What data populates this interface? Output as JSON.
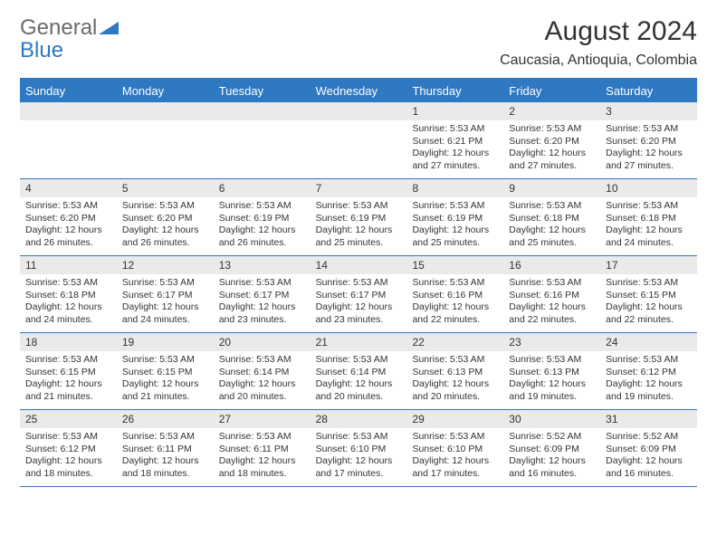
{
  "logo": {
    "text1": "General",
    "text2": "Blue"
  },
  "title": "August 2024",
  "location": "Caucasia, Antioquia, Colombia",
  "colors": {
    "header_blue": "#2f78c2",
    "daynum_bg": "#eaeaea",
    "text": "#333333",
    "logo_gray": "#6b6b6b"
  },
  "dow": [
    "Sunday",
    "Monday",
    "Tuesday",
    "Wednesday",
    "Thursday",
    "Friday",
    "Saturday"
  ],
  "fontsize": {
    "title": 30,
    "subtitle": 16,
    "dow": 13,
    "daynum": 12,
    "body": 10.5
  },
  "weeks": [
    [
      {
        "n": "",
        "sr": "",
        "ss": "",
        "dl": ""
      },
      {
        "n": "",
        "sr": "",
        "ss": "",
        "dl": ""
      },
      {
        "n": "",
        "sr": "",
        "ss": "",
        "dl": ""
      },
      {
        "n": "",
        "sr": "",
        "ss": "",
        "dl": ""
      },
      {
        "n": "1",
        "sr": "Sunrise: 5:53 AM",
        "ss": "Sunset: 6:21 PM",
        "dl": "Daylight: 12 hours and 27 minutes."
      },
      {
        "n": "2",
        "sr": "Sunrise: 5:53 AM",
        "ss": "Sunset: 6:20 PM",
        "dl": "Daylight: 12 hours and 27 minutes."
      },
      {
        "n": "3",
        "sr": "Sunrise: 5:53 AM",
        "ss": "Sunset: 6:20 PM",
        "dl": "Daylight: 12 hours and 27 minutes."
      }
    ],
    [
      {
        "n": "4",
        "sr": "Sunrise: 5:53 AM",
        "ss": "Sunset: 6:20 PM",
        "dl": "Daylight: 12 hours and 26 minutes."
      },
      {
        "n": "5",
        "sr": "Sunrise: 5:53 AM",
        "ss": "Sunset: 6:20 PM",
        "dl": "Daylight: 12 hours and 26 minutes."
      },
      {
        "n": "6",
        "sr": "Sunrise: 5:53 AM",
        "ss": "Sunset: 6:19 PM",
        "dl": "Daylight: 12 hours and 26 minutes."
      },
      {
        "n": "7",
        "sr": "Sunrise: 5:53 AM",
        "ss": "Sunset: 6:19 PM",
        "dl": "Daylight: 12 hours and 25 minutes."
      },
      {
        "n": "8",
        "sr": "Sunrise: 5:53 AM",
        "ss": "Sunset: 6:19 PM",
        "dl": "Daylight: 12 hours and 25 minutes."
      },
      {
        "n": "9",
        "sr": "Sunrise: 5:53 AM",
        "ss": "Sunset: 6:18 PM",
        "dl": "Daylight: 12 hours and 25 minutes."
      },
      {
        "n": "10",
        "sr": "Sunrise: 5:53 AM",
        "ss": "Sunset: 6:18 PM",
        "dl": "Daylight: 12 hours and 24 minutes."
      }
    ],
    [
      {
        "n": "11",
        "sr": "Sunrise: 5:53 AM",
        "ss": "Sunset: 6:18 PM",
        "dl": "Daylight: 12 hours and 24 minutes."
      },
      {
        "n": "12",
        "sr": "Sunrise: 5:53 AM",
        "ss": "Sunset: 6:17 PM",
        "dl": "Daylight: 12 hours and 24 minutes."
      },
      {
        "n": "13",
        "sr": "Sunrise: 5:53 AM",
        "ss": "Sunset: 6:17 PM",
        "dl": "Daylight: 12 hours and 23 minutes."
      },
      {
        "n": "14",
        "sr": "Sunrise: 5:53 AM",
        "ss": "Sunset: 6:17 PM",
        "dl": "Daylight: 12 hours and 23 minutes."
      },
      {
        "n": "15",
        "sr": "Sunrise: 5:53 AM",
        "ss": "Sunset: 6:16 PM",
        "dl": "Daylight: 12 hours and 22 minutes."
      },
      {
        "n": "16",
        "sr": "Sunrise: 5:53 AM",
        "ss": "Sunset: 6:16 PM",
        "dl": "Daylight: 12 hours and 22 minutes."
      },
      {
        "n": "17",
        "sr": "Sunrise: 5:53 AM",
        "ss": "Sunset: 6:15 PM",
        "dl": "Daylight: 12 hours and 22 minutes."
      }
    ],
    [
      {
        "n": "18",
        "sr": "Sunrise: 5:53 AM",
        "ss": "Sunset: 6:15 PM",
        "dl": "Daylight: 12 hours and 21 minutes."
      },
      {
        "n": "19",
        "sr": "Sunrise: 5:53 AM",
        "ss": "Sunset: 6:15 PM",
        "dl": "Daylight: 12 hours and 21 minutes."
      },
      {
        "n": "20",
        "sr": "Sunrise: 5:53 AM",
        "ss": "Sunset: 6:14 PM",
        "dl": "Daylight: 12 hours and 20 minutes."
      },
      {
        "n": "21",
        "sr": "Sunrise: 5:53 AM",
        "ss": "Sunset: 6:14 PM",
        "dl": "Daylight: 12 hours and 20 minutes."
      },
      {
        "n": "22",
        "sr": "Sunrise: 5:53 AM",
        "ss": "Sunset: 6:13 PM",
        "dl": "Daylight: 12 hours and 20 minutes."
      },
      {
        "n": "23",
        "sr": "Sunrise: 5:53 AM",
        "ss": "Sunset: 6:13 PM",
        "dl": "Daylight: 12 hours and 19 minutes."
      },
      {
        "n": "24",
        "sr": "Sunrise: 5:53 AM",
        "ss": "Sunset: 6:12 PM",
        "dl": "Daylight: 12 hours and 19 minutes."
      }
    ],
    [
      {
        "n": "25",
        "sr": "Sunrise: 5:53 AM",
        "ss": "Sunset: 6:12 PM",
        "dl": "Daylight: 12 hours and 18 minutes."
      },
      {
        "n": "26",
        "sr": "Sunrise: 5:53 AM",
        "ss": "Sunset: 6:11 PM",
        "dl": "Daylight: 12 hours and 18 minutes."
      },
      {
        "n": "27",
        "sr": "Sunrise: 5:53 AM",
        "ss": "Sunset: 6:11 PM",
        "dl": "Daylight: 12 hours and 18 minutes."
      },
      {
        "n": "28",
        "sr": "Sunrise: 5:53 AM",
        "ss": "Sunset: 6:10 PM",
        "dl": "Daylight: 12 hours and 17 minutes."
      },
      {
        "n": "29",
        "sr": "Sunrise: 5:53 AM",
        "ss": "Sunset: 6:10 PM",
        "dl": "Daylight: 12 hours and 17 minutes."
      },
      {
        "n": "30",
        "sr": "Sunrise: 5:52 AM",
        "ss": "Sunset: 6:09 PM",
        "dl": "Daylight: 12 hours and 16 minutes."
      },
      {
        "n": "31",
        "sr": "Sunrise: 5:52 AM",
        "ss": "Sunset: 6:09 PM",
        "dl": "Daylight: 12 hours and 16 minutes."
      }
    ]
  ]
}
